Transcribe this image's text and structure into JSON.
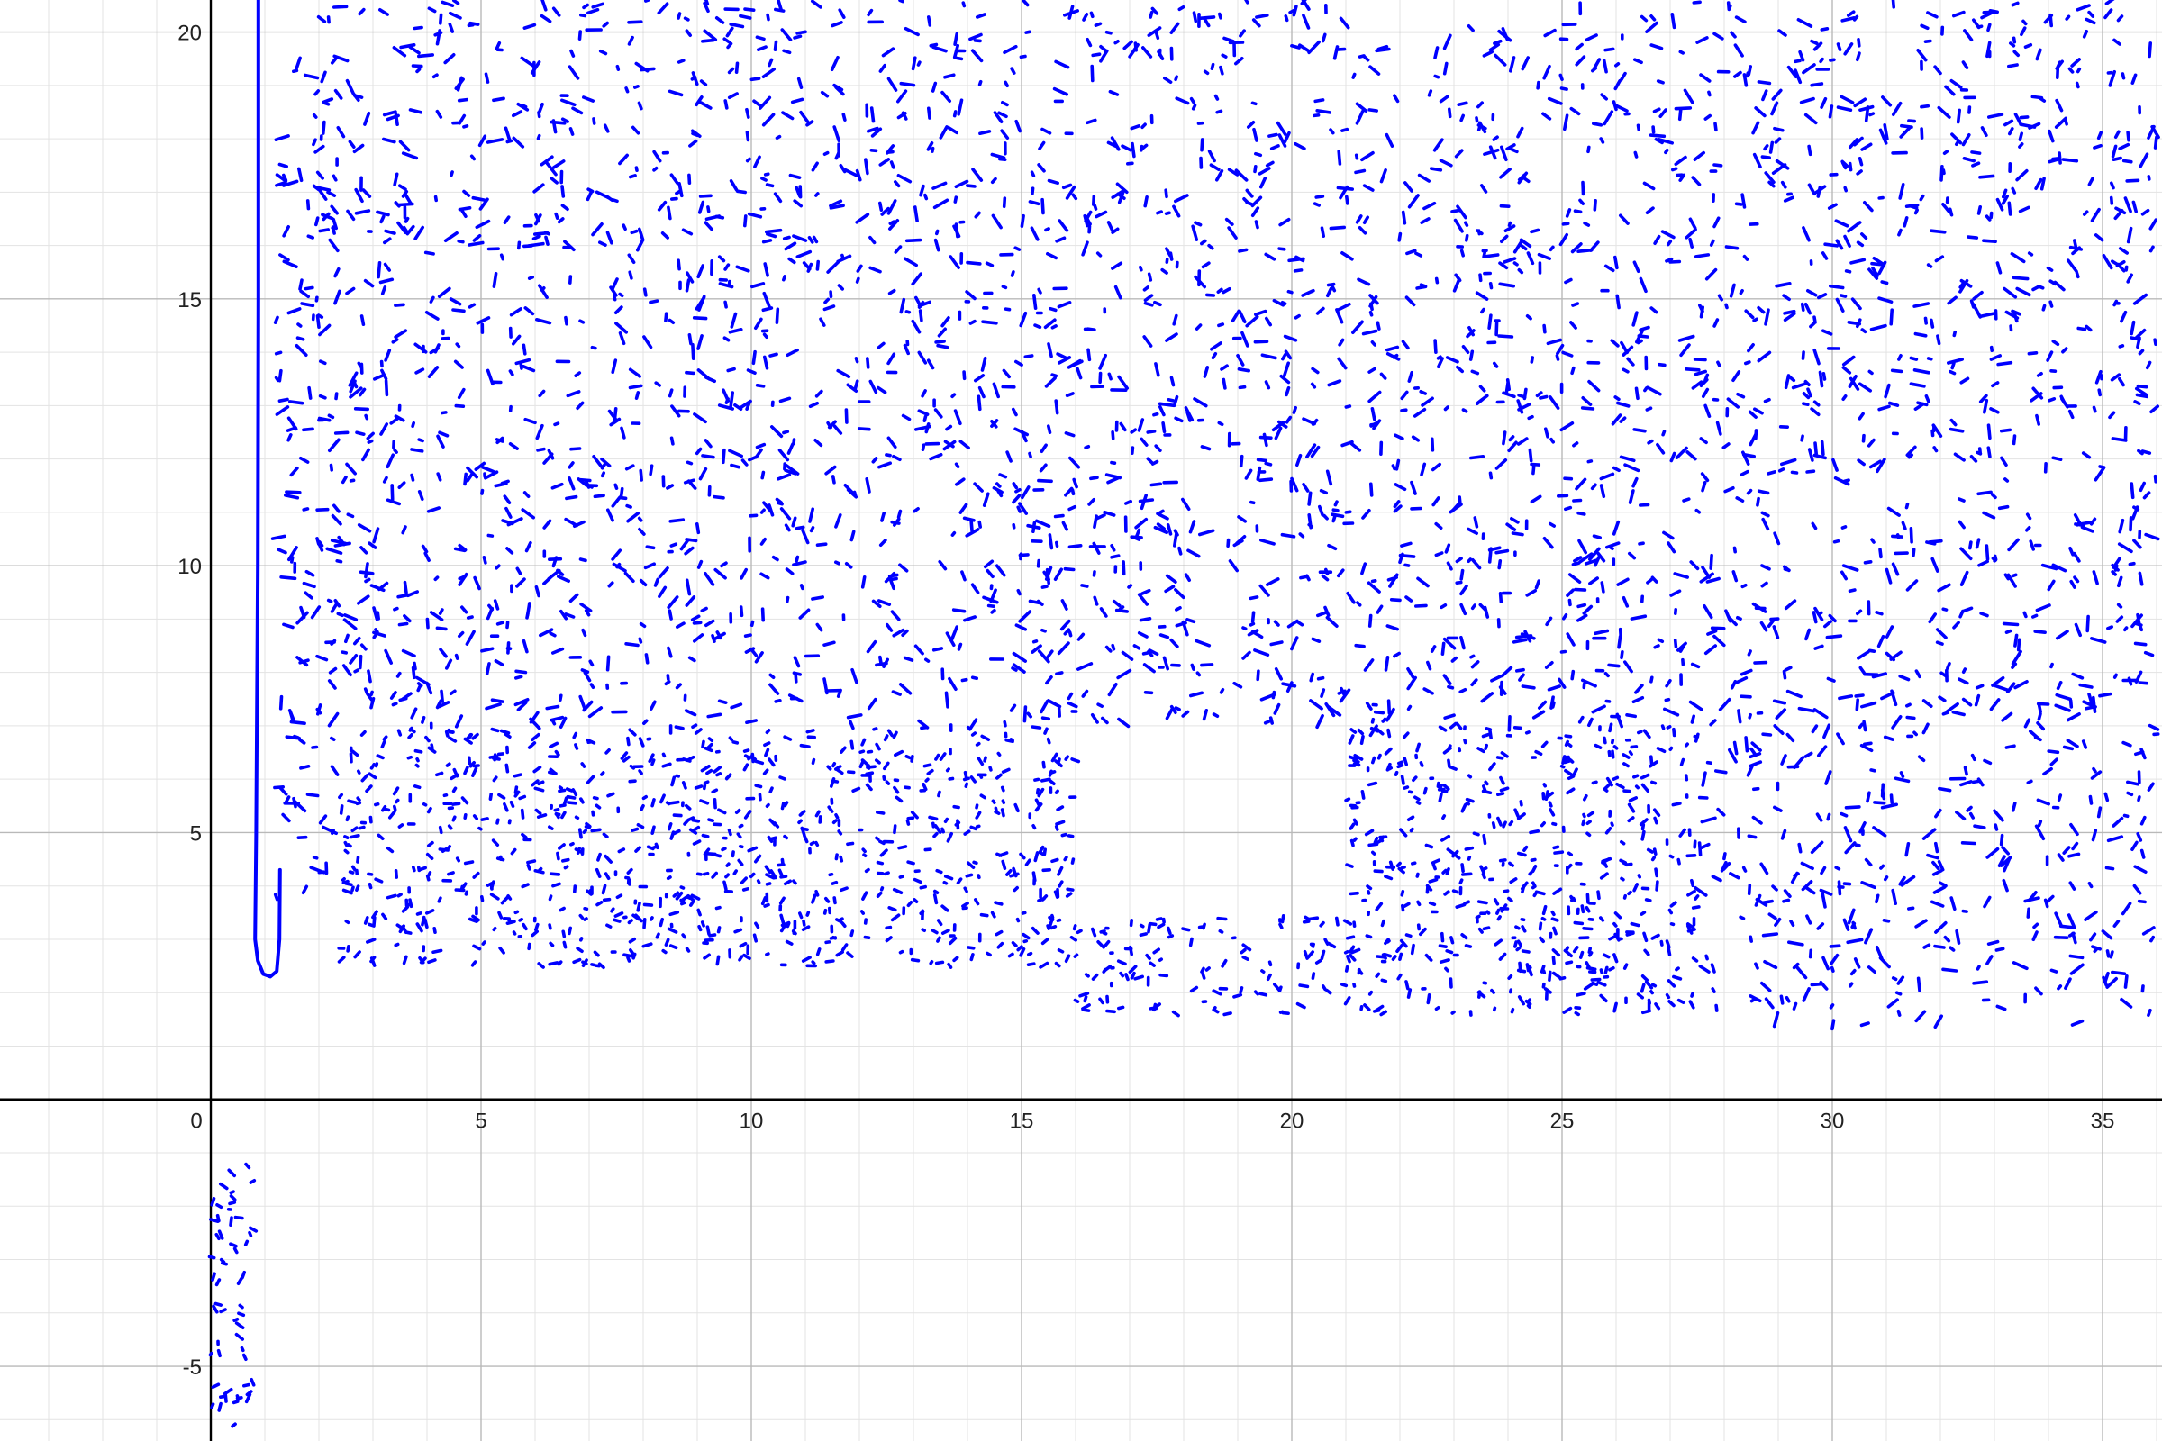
{
  "chart_data": {
    "type": "scatter",
    "title": "",
    "xlabel": "",
    "ylabel": "",
    "xlim": [
      -3.9,
      36.1
    ],
    "ylim": [
      -6.4,
      20.6
    ],
    "grid": true,
    "grid_minor_step": 1,
    "grid_major_step": 5,
    "x_ticks": [
      "0",
      "5",
      "10",
      "15",
      "20",
      "25",
      "30",
      "35"
    ],
    "y_ticks": [
      "-5",
      "5",
      "10",
      "15",
      "20"
    ],
    "colors": {
      "series": "#0000ff",
      "grid_minor": "#e3e3e3",
      "grid_major": "#b9b9b9",
      "axis": "#000000"
    },
    "series": [
      {
        "kind": "curve",
        "points": [
          [
            0.88,
            20.6
          ],
          [
            0.88,
            15
          ],
          [
            0.87,
            10
          ],
          [
            0.84,
            5
          ],
          [
            0.82,
            3
          ],
          [
            0.87,
            2.6
          ],
          [
            0.97,
            2.35
          ],
          [
            1.1,
            2.3
          ],
          [
            1.22,
            2.4
          ],
          [
            1.27,
            3
          ],
          [
            1.28,
            4.3
          ]
        ]
      },
      {
        "kind": "scatter_regions",
        "regions": [
          {
            "x": [
              2,
              36
            ],
            "y": [
              7,
              20.6
            ],
            "density": "sparse"
          },
          {
            "x": [
              2.4,
              16
            ],
            "y": [
              2.5,
              7
            ],
            "density": "dense"
          },
          {
            "x": [
              16,
              27.5
            ],
            "y": [
              1.6,
              3.4
            ],
            "density": "dense"
          },
          {
            "x": [
              21,
              27.5
            ],
            "y": [
              3.4,
              7
            ],
            "density": "dense"
          },
          {
            "x": [
              27.5,
              36
            ],
            "y": [
              1.4,
              7
            ],
            "density": "sparse"
          },
          {
            "x": [
              1.2,
              2.3
            ],
            "y": [
              3.6,
              20
            ],
            "density": "sparse"
          },
          {
            "x": [
              0,
              0.8
            ],
            "y": [
              -6.2,
              -1.2
            ],
            "density": "dense"
          }
        ]
      }
    ]
  }
}
